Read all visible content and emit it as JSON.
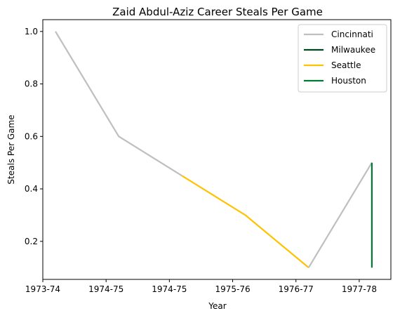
{
  "chart_data": {
    "type": "line",
    "title": "Zaid Abdul-Aziz Career Steals Per Game",
    "xlabel": "Year",
    "ylabel": "Steals Per Game",
    "x_ticks": [
      {
        "x": 0.0,
        "label": "1973-74"
      },
      {
        "x": 0.5,
        "label": "1974-75"
      },
      {
        "x": 1.0,
        "label": "1974-75"
      },
      {
        "x": 1.5,
        "label": "1975-76"
      },
      {
        "x": 2.0,
        "label": "1976-77"
      },
      {
        "x": 2.5,
        "label": "1977-78"
      }
    ],
    "y_ticks": [
      0.2,
      0.4,
      0.6,
      0.8,
      1.0
    ],
    "xlim": [
      0.0,
      2.75
    ],
    "ylim": [
      0.055,
      1.045
    ],
    "grid": false,
    "legend": "top-right",
    "series": [
      {
        "name": "Cincinnati",
        "color": "#bfbfbf",
        "points": [
          [
            0.1,
            1.0
          ],
          [
            0.6,
            0.6
          ],
          [
            1.1,
            0.45
          ]
        ]
      },
      {
        "name": "Milwaukee",
        "color": "#00471b",
        "points": [
          [
            1.1,
            0.45
          ],
          [
            1.1,
            0.45
          ]
        ]
      },
      {
        "name": "Seattle",
        "color": "#ffc200",
        "points": [
          [
            1.1,
            0.45
          ],
          [
            1.6,
            0.3
          ],
          [
            2.1,
            0.1
          ]
        ]
      },
      {
        "name": "Houston",
        "color": "#007a33",
        "points": [
          [
            2.1,
            0.1
          ],
          [
            2.1,
            0.1
          ]
        ]
      },
      {
        "name": "Cincinnati",
        "color": "#bfbfbf",
        "points": [
          [
            2.1,
            0.1
          ],
          [
            2.6,
            0.5
          ]
        ],
        "legend": false
      },
      {
        "name": "Houston",
        "color": "#007a33",
        "points": [
          [
            2.6,
            0.5
          ],
          [
            2.6,
            0.1
          ]
        ],
        "legend": false
      }
    ]
  }
}
